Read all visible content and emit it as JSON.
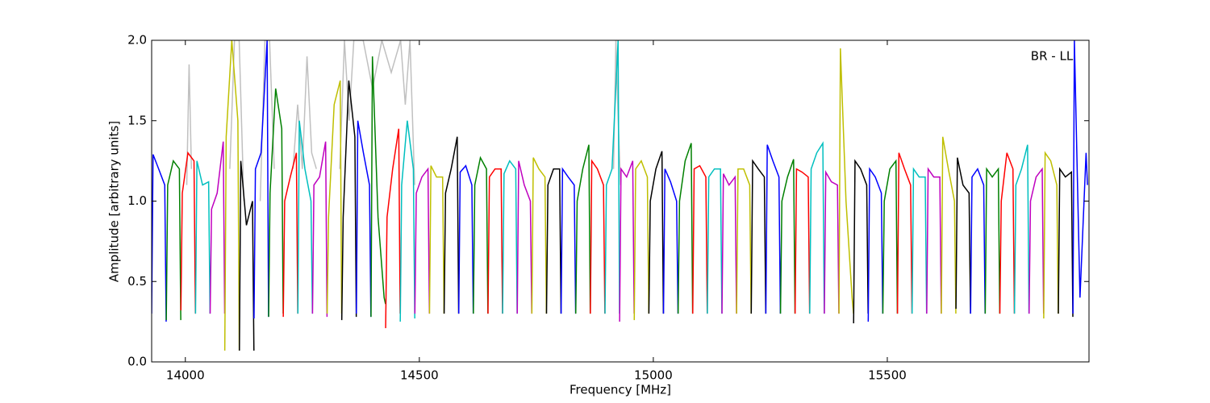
{
  "chart_data": {
    "type": "line",
    "xlabel": "Frequency [MHz]",
    "ylabel": "Amplitude [arbitrary units]",
    "annotation": "BR - LL",
    "xlim": [
      13928,
      15931
    ],
    "ylim": [
      0,
      2
    ],
    "xticks": [
      14000,
      14500,
      15000,
      15500
    ],
    "yticks": [
      {
        "value": 0,
        "label": "0.0"
      },
      {
        "value": 0.5,
        "label": "0.5"
      },
      {
        "value": 1,
        "label": "1.0"
      },
      {
        "value": 1.5,
        "label": "1.5"
      },
      {
        "value": 2,
        "label": "2.0"
      }
    ],
    "grid": false,
    "series": [
      {
        "color": "#c0c0c0",
        "x": [
          14003,
          14008,
          14013,
          null,
          14095,
          14105,
          14115,
          14125,
          null,
          14160,
          14170,
          14180,
          14190,
          null,
          14230,
          14240,
          14250,
          14260,
          14270,
          14280,
          null,
          14330,
          14340,
          14350,
          14360,
          14380,
          14400,
          14420,
          14440,
          14460,
          14470,
          14480,
          14490,
          null,
          14915,
          14920,
          14925,
          14930
        ],
        "values": [
          1.1,
          1.85,
          1.2,
          null,
          1.2,
          2.0,
          2.0,
          1.0,
          null,
          1.0,
          2.0,
          2.0,
          1.2,
          null,
          1.2,
          1.6,
          1.2,
          1.9,
          1.3,
          1.2,
          null,
          1.2,
          2.0,
          1.5,
          2.0,
          2.0,
          1.7,
          2.0,
          1.8,
          2.0,
          1.6,
          2.0,
          1.1,
          null,
          1.2,
          2.0,
          1.5,
          1.1
        ]
      },
      {
        "color": "#0000ff",
        "x": [
          13928,
          13931,
          13943,
          13956,
          13959
        ],
        "values": [
          0.3,
          1.29,
          1.2,
          1.1,
          0.25
        ]
      },
      {
        "color": "#008000",
        "x": [
          13959.25,
          13962.25,
          13974.25,
          13987.25,
          13990.25
        ],
        "values": [
          0.26,
          1.1,
          1.25,
          1.2,
          0.26
        ]
      },
      {
        "color": "#ff0000",
        "x": [
          13990.5,
          13993.5,
          14005.5,
          14018.5,
          14021.5
        ],
        "values": [
          0.32,
          1.05,
          1.3,
          1.25,
          0.3
        ]
      },
      {
        "color": "#00bfbf",
        "x": [
          14021.75,
          14024.75,
          14036.75,
          14049.75,
          14052.75
        ],
        "values": [
          0.3,
          1.25,
          1.1,
          1.12,
          0.3
        ]
      },
      {
        "color": "#bf00bf",
        "x": [
          14053,
          14056,
          14068,
          14081,
          14084
        ],
        "values": [
          0.3,
          0.95,
          1.05,
          1.37,
          0.3
        ]
      },
      {
        "color": "#bfbf00",
        "x": [
          14084.25,
          14087.25,
          14099.25,
          14112.25,
          14115.25
        ],
        "values": [
          0.07,
          1.4,
          2.0,
          1.5,
          0.07
        ]
      },
      {
        "color": "#000000",
        "x": [
          14115.5,
          14118.5,
          14130.5,
          14143.5,
          14146.5
        ],
        "values": [
          0.07,
          1.25,
          0.85,
          1.0,
          0.07
        ]
      },
      {
        "color": "#0000ff",
        "x": [
          14146.75,
          14149.75,
          14161.75,
          14174.75,
          14177.75
        ],
        "values": [
          0.27,
          1.2,
          1.3,
          2.0,
          0.28
        ]
      },
      {
        "color": "#008000",
        "x": [
          14178,
          14181,
          14193,
          14206,
          14209
        ],
        "values": [
          0.28,
          1.05,
          1.7,
          1.45,
          0.3
        ]
      },
      {
        "color": "#ff0000",
        "x": [
          14209.25,
          14212.25,
          14224.25,
          14237.25,
          14240.25
        ],
        "values": [
          0.28,
          1.0,
          1.15,
          1.3,
          0.3
        ]
      },
      {
        "color": "#00bfbf",
        "x": [
          14240.5,
          14243.5,
          14255.5,
          14268.5,
          14271.5
        ],
        "values": [
          0.3,
          1.5,
          1.2,
          1.0,
          0.3
        ]
      },
      {
        "color": "#bf00bf",
        "x": [
          14271.75,
          14274.75,
          14286.75,
          14299.75,
          14302.75
        ],
        "values": [
          0.3,
          1.1,
          1.15,
          1.37,
          0.28
        ]
      },
      {
        "color": "#bfbf00",
        "x": [
          14303,
          14306,
          14318,
          14331,
          14334
        ],
        "values": [
          0.3,
          0.9,
          1.6,
          1.75,
          0.3
        ]
      },
      {
        "color": "#000000",
        "x": [
          14334.25,
          14337.25,
          14349.25,
          14362.25,
          14365.25
        ],
        "values": [
          0.26,
          0.9,
          1.75,
          1.4,
          0.28
        ]
      },
      {
        "color": "#0000ff",
        "x": [
          14365.5,
          14368.5,
          14380.5,
          14393.5,
          14396.5
        ],
        "values": [
          0.3,
          1.5,
          1.3,
          1.1,
          0.28
        ]
      },
      {
        "color": "#008000",
        "x": [
          14396.75,
          14399.75,
          14411.75,
          14424.75,
          14427.75
        ],
        "values": [
          0.28,
          1.9,
          0.9,
          0.4,
          0.36
        ]
      },
      {
        "color": "#ff0000",
        "x": [
          14428,
          14431,
          14443,
          14456,
          14459
        ],
        "values": [
          0.21,
          0.9,
          1.2,
          1.45,
          0.3
        ]
      },
      {
        "color": "#00bfbf",
        "x": [
          14459.25,
          14462.25,
          14474.25,
          14487.25,
          14490.25
        ],
        "values": [
          0.25,
          1.1,
          1.5,
          1.2,
          0.27
        ]
      },
      {
        "color": "#bf00bf",
        "x": [
          14490.5,
          14493.5,
          14505.5,
          14518.5,
          14521.5
        ],
        "values": [
          0.3,
          1.05,
          1.15,
          1.2,
          0.3
        ]
      },
      {
        "color": "#bfbf00",
        "x": [
          14521.75,
          14524.75,
          14536.75,
          14549.75,
          14552.75
        ],
        "values": [
          0.3,
          1.22,
          1.15,
          1.15,
          0.3
        ]
      },
      {
        "color": "#000000",
        "x": [
          14553,
          14556,
          14568,
          14581,
          14584
        ],
        "values": [
          0.3,
          1.05,
          1.2,
          1.4,
          0.3
        ]
      },
      {
        "color": "#0000ff",
        "x": [
          14584.25,
          14587.25,
          14599.25,
          14612.25,
          14615.25
        ],
        "values": [
          0.3,
          1.18,
          1.22,
          1.1,
          0.3
        ]
      },
      {
        "color": "#008000",
        "x": [
          14615.5,
          14618.5,
          14630.5,
          14643.5,
          14646.5
        ],
        "values": [
          0.3,
          1.1,
          1.27,
          1.2,
          0.3
        ]
      },
      {
        "color": "#ff0000",
        "x": [
          14646.75,
          14649.75,
          14661.75,
          14674.75,
          14677.75
        ],
        "values": [
          0.3,
          1.15,
          1.2,
          1.2,
          0.3
        ]
      },
      {
        "color": "#00bfbf",
        "x": [
          14678,
          14681,
          14693,
          14706,
          14709
        ],
        "values": [
          0.3,
          1.17,
          1.25,
          1.2,
          0.3
        ]
      },
      {
        "color": "#bf00bf",
        "x": [
          14709.25,
          14712.25,
          14724.25,
          14737.25,
          14740.25
        ],
        "values": [
          0.3,
          1.25,
          1.1,
          1.0,
          0.3
        ]
      },
      {
        "color": "#bfbf00",
        "x": [
          14740.5,
          14743.5,
          14755.5,
          14768.5,
          14771.5
        ],
        "values": [
          0.3,
          1.27,
          1.2,
          1.15,
          0.3
        ]
      },
      {
        "color": "#000000",
        "x": [
          14771.75,
          14774.75,
          14786.75,
          14799.75,
          14802.75
        ],
        "values": [
          0.3,
          1.1,
          1.2,
          1.2,
          0.3
        ]
      },
      {
        "color": "#0000ff",
        "x": [
          14803,
          14806,
          14818,
          14831,
          14834
        ],
        "values": [
          0.3,
          1.2,
          1.15,
          1.1,
          0.3
        ]
      },
      {
        "color": "#008000",
        "x": [
          14834.25,
          14837.25,
          14849.25,
          14862.25,
          14865.25
        ],
        "values": [
          0.3,
          1.0,
          1.2,
          1.35,
          0.3
        ]
      },
      {
        "color": "#ff0000",
        "x": [
          14865.5,
          14868.5,
          14880.5,
          14893.5,
          14896.5
        ],
        "values": [
          0.3,
          1.25,
          1.2,
          1.1,
          0.3
        ]
      },
      {
        "color": "#00bfbf",
        "x": [
          14896.75,
          14899.75,
          14911.75,
          14924.75,
          14927.75
        ],
        "values": [
          0.3,
          1.1,
          1.2,
          2.0,
          0.3
        ]
      },
      {
        "color": "#bf00bf",
        "x": [
          14928,
          14931,
          14943,
          14956,
          14959
        ],
        "values": [
          0.25,
          1.2,
          1.15,
          1.25,
          0.3
        ]
      },
      {
        "color": "#bfbf00",
        "x": [
          14959.25,
          14962.25,
          14974.25,
          14987.25,
          14990.25
        ],
        "values": [
          0.26,
          1.2,
          1.25,
          1.15,
          0.3
        ]
      },
      {
        "color": "#000000",
        "x": [
          14990.5,
          14993.5,
          15005.5,
          15018.5,
          15021.5
        ],
        "values": [
          0.3,
          1.0,
          1.2,
          1.31,
          0.3
        ]
      },
      {
        "color": "#0000ff",
        "x": [
          15021.75,
          15024.75,
          15036.75,
          15049.75,
          15052.75
        ],
        "values": [
          0.3,
          1.2,
          1.12,
          1.0,
          0.3
        ]
      },
      {
        "color": "#008000",
        "x": [
          15053,
          15056,
          15068,
          15081,
          15084
        ],
        "values": [
          0.3,
          1.0,
          1.25,
          1.36,
          0.3
        ]
      },
      {
        "color": "#ff0000",
        "x": [
          15084.25,
          15087.25,
          15099.25,
          15112.25,
          15115.25
        ],
        "values": [
          0.3,
          1.2,
          1.22,
          1.15,
          0.3
        ]
      },
      {
        "color": "#00bfbf",
        "x": [
          15115.5,
          15118.5,
          15130.5,
          15143.5,
          15146.5
        ],
        "values": [
          0.3,
          1.15,
          1.2,
          1.2,
          0.3
        ]
      },
      {
        "color": "#bf00bf",
        "x": [
          15146.75,
          15149.75,
          15161.75,
          15174.75,
          15177.75
        ],
        "values": [
          0.3,
          1.17,
          1.1,
          1.15,
          0.3
        ]
      },
      {
        "color": "#bfbf00",
        "x": [
          15178,
          15181,
          15193,
          15206,
          15209
        ],
        "values": [
          0.3,
          1.2,
          1.2,
          1.1,
          0.3
        ]
      },
      {
        "color": "#000000",
        "x": [
          15209.25,
          15212.25,
          15224.25,
          15237.25,
          15240.25
        ],
        "values": [
          0.3,
          1.25,
          1.2,
          1.15,
          0.3
        ]
      },
      {
        "color": "#0000ff",
        "x": [
          15240.5,
          15243.5,
          15255.5,
          15268.5,
          15271.5
        ],
        "values": [
          0.3,
          1.35,
          1.25,
          1.15,
          0.3
        ]
      },
      {
        "color": "#008000",
        "x": [
          15271.75,
          15274.75,
          15286.75,
          15299.75,
          15302.75
        ],
        "values": [
          0.3,
          1.0,
          1.15,
          1.26,
          0.3
        ]
      },
      {
        "color": "#ff0000",
        "x": [
          15303,
          15306,
          15318,
          15331,
          15334
        ],
        "values": [
          0.3,
          1.2,
          1.18,
          1.15,
          0.3
        ]
      },
      {
        "color": "#00bfbf",
        "x": [
          15334.25,
          15337.25,
          15349.25,
          15362.25,
          15365.25
        ],
        "values": [
          0.3,
          1.2,
          1.3,
          1.36,
          0.3
        ]
      },
      {
        "color": "#bf00bf",
        "x": [
          15365.5,
          15368.5,
          15380.5,
          15393.5,
          15396.5
        ],
        "values": [
          0.3,
          1.18,
          1.12,
          1.1,
          0.3
        ]
      },
      {
        "color": "#bfbf00",
        "x": [
          15396.75,
          15399.75,
          15411.75,
          15424.75,
          15427.75
        ],
        "values": [
          0.3,
          1.95,
          1.0,
          0.4,
          0.3
        ]
      },
      {
        "color": "#000000",
        "x": [
          15428,
          15431,
          15443,
          15456,
          15459
        ],
        "values": [
          0.24,
          1.25,
          1.2,
          1.1,
          0.3
        ]
      },
      {
        "color": "#0000ff",
        "x": [
          15459.25,
          15462.25,
          15474.25,
          15487.25,
          15490.25
        ],
        "values": [
          0.25,
          1.2,
          1.15,
          1.05,
          0.3
        ]
      },
      {
        "color": "#008000",
        "x": [
          15490.5,
          15493.5,
          15505.5,
          15518.5,
          15521.5
        ],
        "values": [
          0.3,
          1.0,
          1.2,
          1.25,
          0.3
        ]
      },
      {
        "color": "#ff0000",
        "x": [
          15521.75,
          15524.75,
          15536.75,
          15549.75,
          15552.75
        ],
        "values": [
          0.3,
          1.3,
          1.2,
          1.1,
          0.3
        ]
      },
      {
        "color": "#00bfbf",
        "x": [
          15553,
          15556,
          15568,
          15581,
          15584
        ],
        "values": [
          0.3,
          1.2,
          1.15,
          1.15,
          0.3
        ]
      },
      {
        "color": "#bf00bf",
        "x": [
          15584.25,
          15587.25,
          15599.25,
          15612.25,
          15615.25
        ],
        "values": [
          0.3,
          1.2,
          1.15,
          1.15,
          0.3
        ]
      },
      {
        "color": "#bfbf00",
        "x": [
          15615.5,
          15618.5,
          15630.5,
          15643.5,
          15646.5
        ],
        "values": [
          0.3,
          1.4,
          1.2,
          1.0,
          0.3
        ]
      },
      {
        "color": "#000000",
        "x": [
          15646.75,
          15649.75,
          15661.75,
          15674.75,
          15677.75
        ],
        "values": [
          0.33,
          1.27,
          1.1,
          1.05,
          0.3
        ]
      },
      {
        "color": "#0000ff",
        "x": [
          15678,
          15681,
          15693,
          15706,
          15709
        ],
        "values": [
          0.3,
          1.15,
          1.2,
          1.1,
          0.3
        ]
      },
      {
        "color": "#008000",
        "x": [
          15709.25,
          15712.25,
          15724.25,
          15737.25,
          15740.25
        ],
        "values": [
          0.3,
          1.2,
          1.15,
          1.2,
          0.3
        ]
      },
      {
        "color": "#ff0000",
        "x": [
          15740.5,
          15743.5,
          15755.5,
          15768.5,
          15771.5
        ],
        "values": [
          0.3,
          1.0,
          1.3,
          1.2,
          0.3
        ]
      },
      {
        "color": "#00bfbf",
        "x": [
          15771.75,
          15774.75,
          15786.75,
          15799.75,
          15802.75
        ],
        "values": [
          0.3,
          1.1,
          1.2,
          1.35,
          0.3
        ]
      },
      {
        "color": "#bf00bf",
        "x": [
          15803,
          15806,
          15818,
          15831,
          15834
        ],
        "values": [
          0.3,
          1.0,
          1.15,
          1.2,
          0.3
        ]
      },
      {
        "color": "#bfbf00",
        "x": [
          15834.25,
          15837.25,
          15849.25,
          15862.25,
          15865.25
        ],
        "values": [
          0.27,
          1.3,
          1.25,
          1.1,
          0.3
        ]
      },
      {
        "color": "#000000",
        "x": [
          15865.5,
          15868.5,
          15880.5,
          15893.5,
          15896.5
        ],
        "values": [
          0.3,
          1.2,
          1.15,
          1.18,
          0.28
        ]
      },
      {
        "color": "#0000ff",
        "x": [
          15896.75,
          15899.75,
          15911.75,
          15924.75,
          15927.75
        ],
        "values": [
          0.3,
          2.0,
          0.4,
          1.3,
          1.1
        ]
      }
    ]
  }
}
